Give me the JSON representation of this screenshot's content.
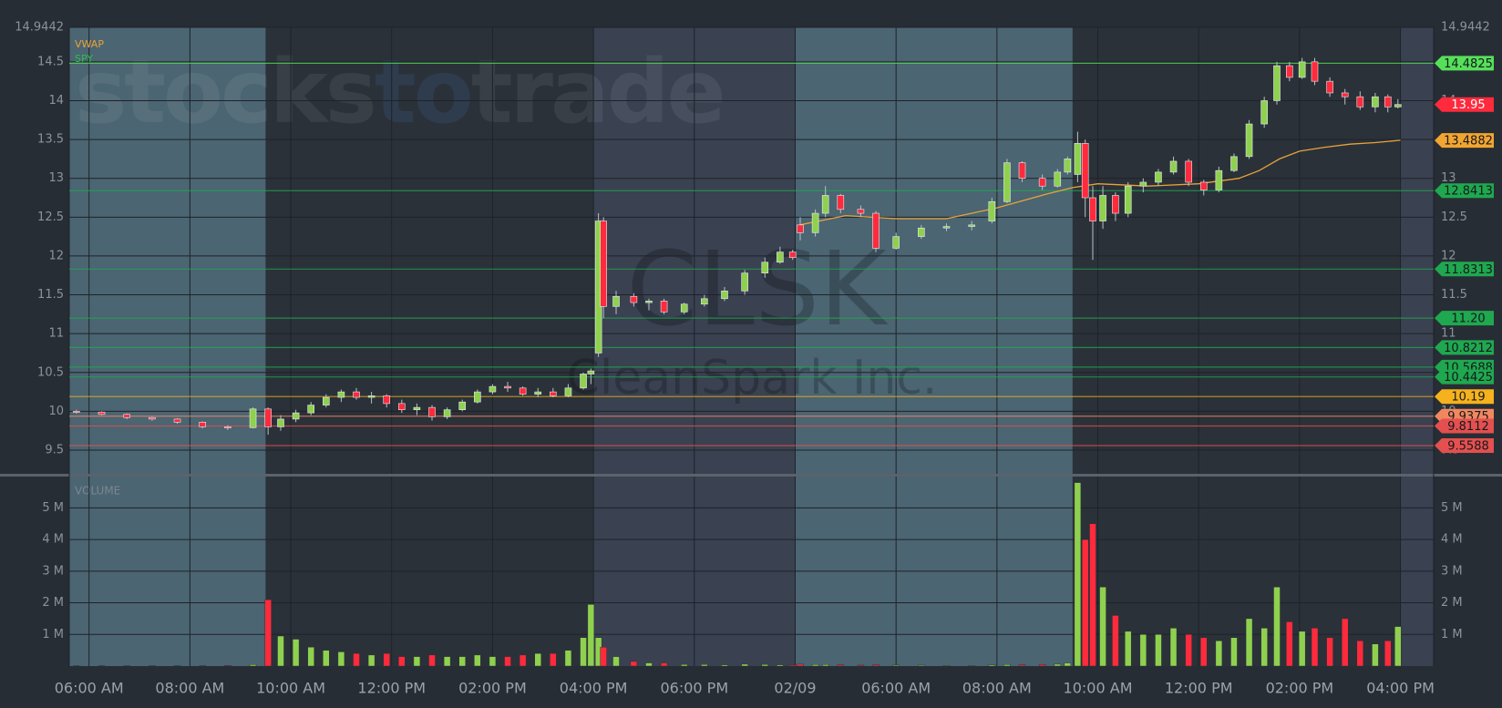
{
  "chart_data": {
    "type": "candlestick",
    "symbol": "CLSK",
    "company": "CleanSpark Inc.",
    "brand": [
      "stocks",
      "to",
      "trade"
    ],
    "up_color": "#8fd14f",
    "down_color": "#ff2a3c",
    "grid": true,
    "xlim": [
      5.608,
      32.658
    ],
    "xticks": [
      {
        "value": 6,
        "label": "06:00 AM"
      },
      {
        "value": 8,
        "label": "08:00 AM"
      },
      {
        "value": 10,
        "label": "10:00 AM"
      },
      {
        "value": 12,
        "label": "12:00 PM"
      },
      {
        "value": 14,
        "label": "02:00 PM"
      },
      {
        "value": 16,
        "label": "04:00 PM"
      },
      {
        "value": 18,
        "label": "06:00 PM"
      },
      {
        "value": 20,
        "label": "02/09"
      },
      {
        "value": 22,
        "label": "06:00 AM"
      },
      {
        "value": 24,
        "label": "08:00 AM"
      },
      {
        "value": 26,
        "label": "10:00 AM"
      },
      {
        "value": 28,
        "label": "12:00 PM"
      },
      {
        "value": 30,
        "label": "02:00 PM"
      },
      {
        "value": 32,
        "label": "04:00 PM"
      }
    ],
    "ylim": [
      9.195,
      14.9442
    ],
    "yticks": [
      14.9442,
      14.5,
      14,
      13.5,
      13,
      12.5,
      12,
      11.5,
      11,
      10.5,
      10,
      9.5
    ],
    "x": [
      5.75,
      6.25,
      6.75,
      7.25,
      7.75,
      8.25,
      8.75,
      9.25,
      9.55,
      9.8,
      10.1,
      10.4,
      10.7,
      11.0,
      11.3,
      11.6,
      11.9,
      12.2,
      12.5,
      12.8,
      13.1,
      13.4,
      13.7,
      14.0,
      14.3,
      14.6,
      14.9,
      15.2,
      15.5,
      15.8,
      15.95,
      16.1,
      16.2,
      16.45,
      16.8,
      17.1,
      17.4,
      17.8,
      18.2,
      18.6,
      19.0,
      19.4,
      19.7,
      19.95,
      20.1,
      20.4,
      20.6,
      20.9,
      21.3,
      21.6,
      22.0,
      22.5,
      23.0,
      23.5,
      23.9,
      24.2,
      24.5,
      24.9,
      25.2,
      25.4,
      25.6,
      25.75,
      25.9,
      26.1,
      26.35,
      26.6,
      26.9,
      27.2,
      27.5,
      27.8,
      28.1,
      28.4,
      28.7,
      29.0,
      29.3,
      29.55,
      29.8,
      30.05,
      30.3,
      30.6,
      30.9,
      31.2,
      31.5,
      31.75,
      31.95
    ],
    "open": [
      10.0,
      9.99,
      9.96,
      9.92,
      9.9,
      9.86,
      9.8,
      9.79,
      10.03,
      9.8,
      9.9,
      9.98,
      10.08,
      10.18,
      10.25,
      10.18,
      10.2,
      10.1,
      10.02,
      10.05,
      9.93,
      10.02,
      10.12,
      10.25,
      10.32,
      10.3,
      10.22,
      10.25,
      10.2,
      10.3,
      10.48,
      10.75,
      12.45,
      11.35,
      11.48,
      11.4,
      11.42,
      11.28,
      11.38,
      11.45,
      11.55,
      11.78,
      11.92,
      12.05,
      12.4,
      12.3,
      12.55,
      12.78,
      12.6,
      12.55,
      12.1,
      12.25,
      12.36,
      12.38,
      12.45,
      12.7,
      13.2,
      13.0,
      12.9,
      13.08,
      13.05,
      13.45,
      12.75,
      12.45,
      12.78,
      12.55,
      12.9,
      12.95,
      13.08,
      13.22,
      12.95,
      12.85,
      13.1,
      13.28,
      13.7,
      14.0,
      14.45,
      14.3,
      14.5,
      14.25,
      14.1,
      14.05,
      13.92,
      14.05,
      13.92
    ],
    "high": [
      10.02,
      10.0,
      9.97,
      9.93,
      9.91,
      9.87,
      9.82,
      10.05,
      10.05,
      9.95,
      10.02,
      10.12,
      10.22,
      10.28,
      10.3,
      10.25,
      10.22,
      10.15,
      10.1,
      10.08,
      10.05,
      10.15,
      10.28,
      10.35,
      10.38,
      10.32,
      10.3,
      10.3,
      10.35,
      10.5,
      10.55,
      12.55,
      12.5,
      11.55,
      11.52,
      11.45,
      11.45,
      11.4,
      11.5,
      11.6,
      11.82,
      11.98,
      12.12,
      12.08,
      12.5,
      12.6,
      12.9,
      12.8,
      12.65,
      12.58,
      12.3,
      12.4,
      12.42,
      12.45,
      12.75,
      13.25,
      13.22,
      13.05,
      13.12,
      13.28,
      13.6,
      13.5,
      12.9,
      12.9,
      12.82,
      12.95,
      13.0,
      13.12,
      13.28,
      13.25,
      12.98,
      13.15,
      13.32,
      13.75,
      14.05,
      14.5,
      14.5,
      14.55,
      14.55,
      14.3,
      14.15,
      14.12,
      14.1,
      14.08,
      14.02
    ],
    "low": [
      9.97,
      9.95,
      9.9,
      9.88,
      9.84,
      9.78,
      9.76,
      9.78,
      9.7,
      9.75,
      9.86,
      9.95,
      10.05,
      10.12,
      10.15,
      10.1,
      10.05,
      9.98,
      9.95,
      9.88,
      9.9,
      10.0,
      10.1,
      10.22,
      10.25,
      10.2,
      10.18,
      10.18,
      10.18,
      10.28,
      10.35,
      10.7,
      11.2,
      11.25,
      11.35,
      11.3,
      11.25,
      11.25,
      11.35,
      11.42,
      11.5,
      11.72,
      11.9,
      11.95,
      12.2,
      12.25,
      12.5,
      12.55,
      12.5,
      12.05,
      12.08,
      12.22,
      12.32,
      12.33,
      12.42,
      12.68,
      12.95,
      12.85,
      12.88,
      13.05,
      12.95,
      12.5,
      11.95,
      12.35,
      12.45,
      12.5,
      12.82,
      12.9,
      13.05,
      12.9,
      12.78,
      12.82,
      13.08,
      13.25,
      13.65,
      13.95,
      14.25,
      14.28,
      14.2,
      14.05,
      13.95,
      13.88,
      13.85,
      13.85,
      13.9
    ],
    "close": [
      9.99,
      9.96,
      9.92,
      9.9,
      9.86,
      9.8,
      9.79,
      10.03,
      9.8,
      9.9,
      9.98,
      10.08,
      10.18,
      10.25,
      10.18,
      10.2,
      10.1,
      10.02,
      10.05,
      9.93,
      10.02,
      10.12,
      10.25,
      10.32,
      10.3,
      10.22,
      10.25,
      10.2,
      10.3,
      10.48,
      10.52,
      12.45,
      11.35,
      11.48,
      11.4,
      11.42,
      11.28,
      11.38,
      11.45,
      11.55,
      11.78,
      11.92,
      12.05,
      11.98,
      12.3,
      12.55,
      12.78,
      12.6,
      12.55,
      12.1,
      12.25,
      12.36,
      12.38,
      12.4,
      12.7,
      13.2,
      13.0,
      12.9,
      13.08,
      13.25,
      13.45,
      12.75,
      12.45,
      12.78,
      12.55,
      12.9,
      12.95,
      13.08,
      13.22,
      12.95,
      12.85,
      13.1,
      13.28,
      13.7,
      14.0,
      14.45,
      14.3,
      14.5,
      14.25,
      14.1,
      14.05,
      13.92,
      14.05,
      13.92,
      13.95
    ],
    "indicators": [
      {
        "name": "VWAP",
        "color": "#e8a33a",
        "x": [
          20.1,
          21,
          22,
          23,
          24,
          25,
          25.5,
          26,
          27,
          28,
          28.8,
          29.2,
          29.6,
          30,
          30.5,
          31,
          31.5,
          32
        ],
        "values": [
          12.4,
          12.52,
          12.48,
          12.48,
          12.62,
          12.8,
          12.88,
          12.93,
          12.9,
          12.93,
          13.0,
          13.1,
          13.25,
          13.35,
          13.4,
          13.44,
          13.46,
          13.49
        ]
      },
      {
        "name": "SPY",
        "color": "#2fbf4f"
      }
    ],
    "levels": [
      {
        "value": 14.4825,
        "color": "#56e05a",
        "line": true
      },
      {
        "value": 13.95,
        "color": "#ff2a3c",
        "line": false,
        "text_color": "#ffffff"
      },
      {
        "value": 13.4882,
        "color": "#f2a531",
        "line": false
      },
      {
        "value": 12.8413,
        "color": "#1fa84f",
        "line": true
      },
      {
        "value": 11.8313,
        "color": "#1fa84f",
        "line": true
      },
      {
        "value": 11.2,
        "label": "11.20",
        "color": "#1fa84f",
        "line": true
      },
      {
        "value": 10.8212,
        "color": "#1fa84f",
        "line": true
      },
      {
        "value": 10.5688,
        "color": "#1fa84f",
        "line": true
      },
      {
        "value": 10.4425,
        "color": "#1fa84f",
        "line": true
      },
      {
        "value": 10.19,
        "color": "#f5b21d",
        "line": true
      },
      {
        "value": 9.9375,
        "color": "#f0875f",
        "line": true
      },
      {
        "value": 9.8112,
        "color": "#e3504f",
        "line": true
      },
      {
        "value": 9.5588,
        "color": "#e3504f",
        "line": true
      }
    ],
    "volume_panel": {
      "title": "VOLUME",
      "ylim": [
        0,
        5.99
      ],
      "yticks": [
        {
          "value": 5,
          "label": "5 M"
        },
        {
          "value": 4,
          "label": "4 M"
        },
        {
          "value": 3,
          "label": "3 M"
        },
        {
          "value": 2,
          "label": "2 M"
        },
        {
          "value": 1,
          "label": "1 M"
        }
      ],
      "values": [
        0.01,
        0.01,
        0.01,
        0.01,
        0.01,
        0.01,
        0.02,
        0.05,
        2.1,
        0.95,
        0.85,
        0.6,
        0.5,
        0.45,
        0.4,
        0.35,
        0.4,
        0.3,
        0.3,
        0.35,
        0.3,
        0.3,
        0.35,
        0.3,
        0.3,
        0.35,
        0.4,
        0.4,
        0.5,
        0.9,
        1.95,
        0.9,
        0.6,
        0.3,
        0.15,
        0.1,
        0.1,
        0.05,
        0.05,
        0.04,
        0.06,
        0.05,
        0.04,
        0.03,
        0.06,
        0.05,
        0.05,
        0.04,
        0.03,
        0.04,
        0.03,
        0.03,
        0.02,
        0.02,
        0.04,
        0.05,
        0.04,
        0.05,
        0.06,
        0.1,
        5.8,
        4.0,
        4.5,
        2.5,
        1.6,
        1.1,
        1.0,
        1.0,
        1.2,
        1.0,
        0.9,
        0.8,
        0.9,
        1.5,
        1.2,
        2.5,
        1.4,
        1.1,
        1.2,
        0.9,
        1.5,
        0.8,
        0.7,
        0.8,
        1.25
      ]
    }
  }
}
